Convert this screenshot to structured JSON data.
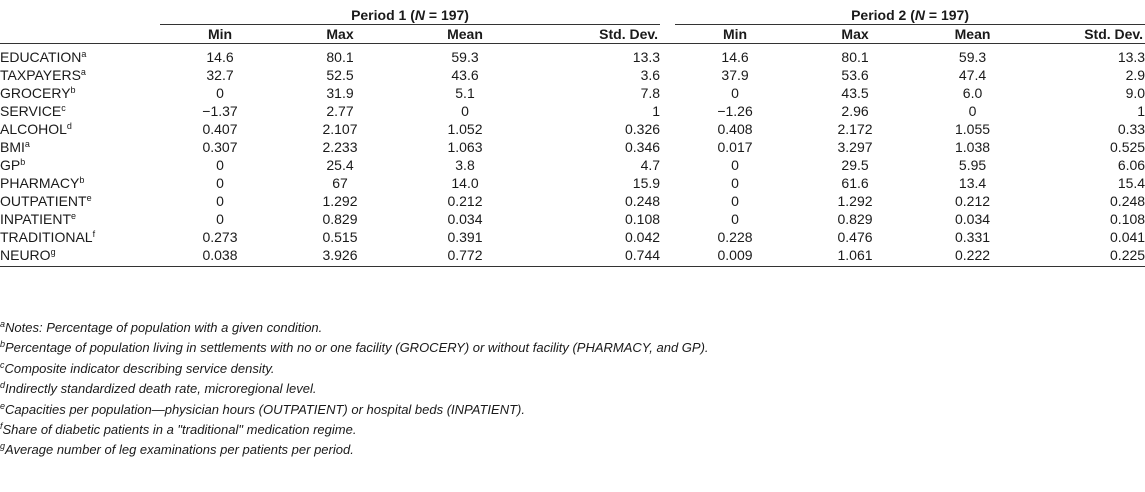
{
  "table": {
    "periods": [
      {
        "label_pre": "Period 1 (",
        "n_sym": "N",
        "label_post": " = 197)"
      },
      {
        "label_pre": "Period 2 (",
        "n_sym": "N",
        "label_post": " = 197)"
      }
    ],
    "stat_headers": [
      "Min",
      "Max",
      "Mean",
      "Std. Dev."
    ],
    "rows": [
      {
        "label": "EDUCATION",
        "sup": "a",
        "p1": [
          "14.6",
          "80.1",
          "59.3",
          "13.3"
        ],
        "p2": [
          "14.6",
          "80.1",
          "59.3",
          "13.3"
        ]
      },
      {
        "label": "TAXPAYERS",
        "sup": "a",
        "p1": [
          "32.7",
          "52.5",
          "43.6",
          "3.6"
        ],
        "p2": [
          "37.9",
          "53.6",
          "47.4",
          "2.9"
        ]
      },
      {
        "label": "GROCERY",
        "sup": "b",
        "p1": [
          "0",
          "31.9",
          "5.1",
          "7.8"
        ],
        "p2": [
          "0",
          "43.5",
          "6.0",
          "9.0"
        ]
      },
      {
        "label": "SERVICE",
        "sup": "c",
        "p1": [
          "−1.37",
          "2.77",
          "0",
          "1"
        ],
        "p2": [
          "−1.26",
          "2.96",
          "0",
          "1"
        ]
      },
      {
        "label": "ALCOHOL",
        "sup": "d",
        "p1": [
          "0.407",
          "2.107",
          "1.052",
          "0.326"
        ],
        "p2": [
          "0.408",
          "2.172",
          "1.055",
          "0.33"
        ]
      },
      {
        "label": "BMI",
        "sup": "a",
        "p1": [
          "0.307",
          "2.233",
          "1.063",
          "0.346"
        ],
        "p2": [
          "0.017",
          "3.297",
          "1.038",
          "0.525"
        ]
      },
      {
        "label": "GP",
        "sup": "b",
        "p1": [
          "0",
          "25.4",
          "3.8",
          "4.7"
        ],
        "p2": [
          "0",
          "29.5",
          "5.95",
          "6.06"
        ]
      },
      {
        "label": "PHARMACY",
        "sup": "b",
        "p1": [
          "0",
          "67",
          "14.0",
          "15.9"
        ],
        "p2": [
          "0",
          "61.6",
          "13.4",
          "15.4"
        ]
      },
      {
        "label": "OUTPATIENT",
        "sup": "e",
        "p1": [
          "0",
          "1.292",
          "0.212",
          "0.248"
        ],
        "p2": [
          "0",
          "1.292",
          "0.212",
          "0.248"
        ]
      },
      {
        "label": "INPATIENT",
        "sup": "e",
        "p1": [
          "0",
          "0.829",
          "0.034",
          "0.108"
        ],
        "p2": [
          "0",
          "0.829",
          "0.034",
          "0.108"
        ]
      },
      {
        "label": "TRADITIONAL",
        "sup": "f",
        "p1": [
          "0.273",
          "0.515",
          "0.391",
          "0.042"
        ],
        "p2": [
          "0.228",
          "0.476",
          "0.331",
          "0.041"
        ]
      },
      {
        "label": "NEURO",
        "sup": "g",
        "p1": [
          "0.038",
          "3.926",
          "0.772",
          "0.744"
        ],
        "p2": [
          "0.009",
          "1.061",
          "0.222",
          "0.225"
        ]
      }
    ]
  },
  "notes": [
    {
      "sup": "a",
      "text": "Notes: Percentage of population with a given condition."
    },
    {
      "sup": "b",
      "text": "Percentage of population living in settlements with no or one facility (GROCERY) or without facility (PHARMACY, and GP)."
    },
    {
      "sup": "c",
      "text": "Composite indicator describing service density."
    },
    {
      "sup": "d",
      "text": "Indirectly standardized death rate, microregional level."
    },
    {
      "sup": "e",
      "text": "Capacities per population—physician hours (OUTPATIENT) or hospital beds (INPATIENT)."
    },
    {
      "sup": "f",
      "text": "Share of diabetic patients in a \"traditional\" medication regime."
    },
    {
      "sup": "g",
      "text": "Average number of leg examinations per patients per period."
    }
  ]
}
